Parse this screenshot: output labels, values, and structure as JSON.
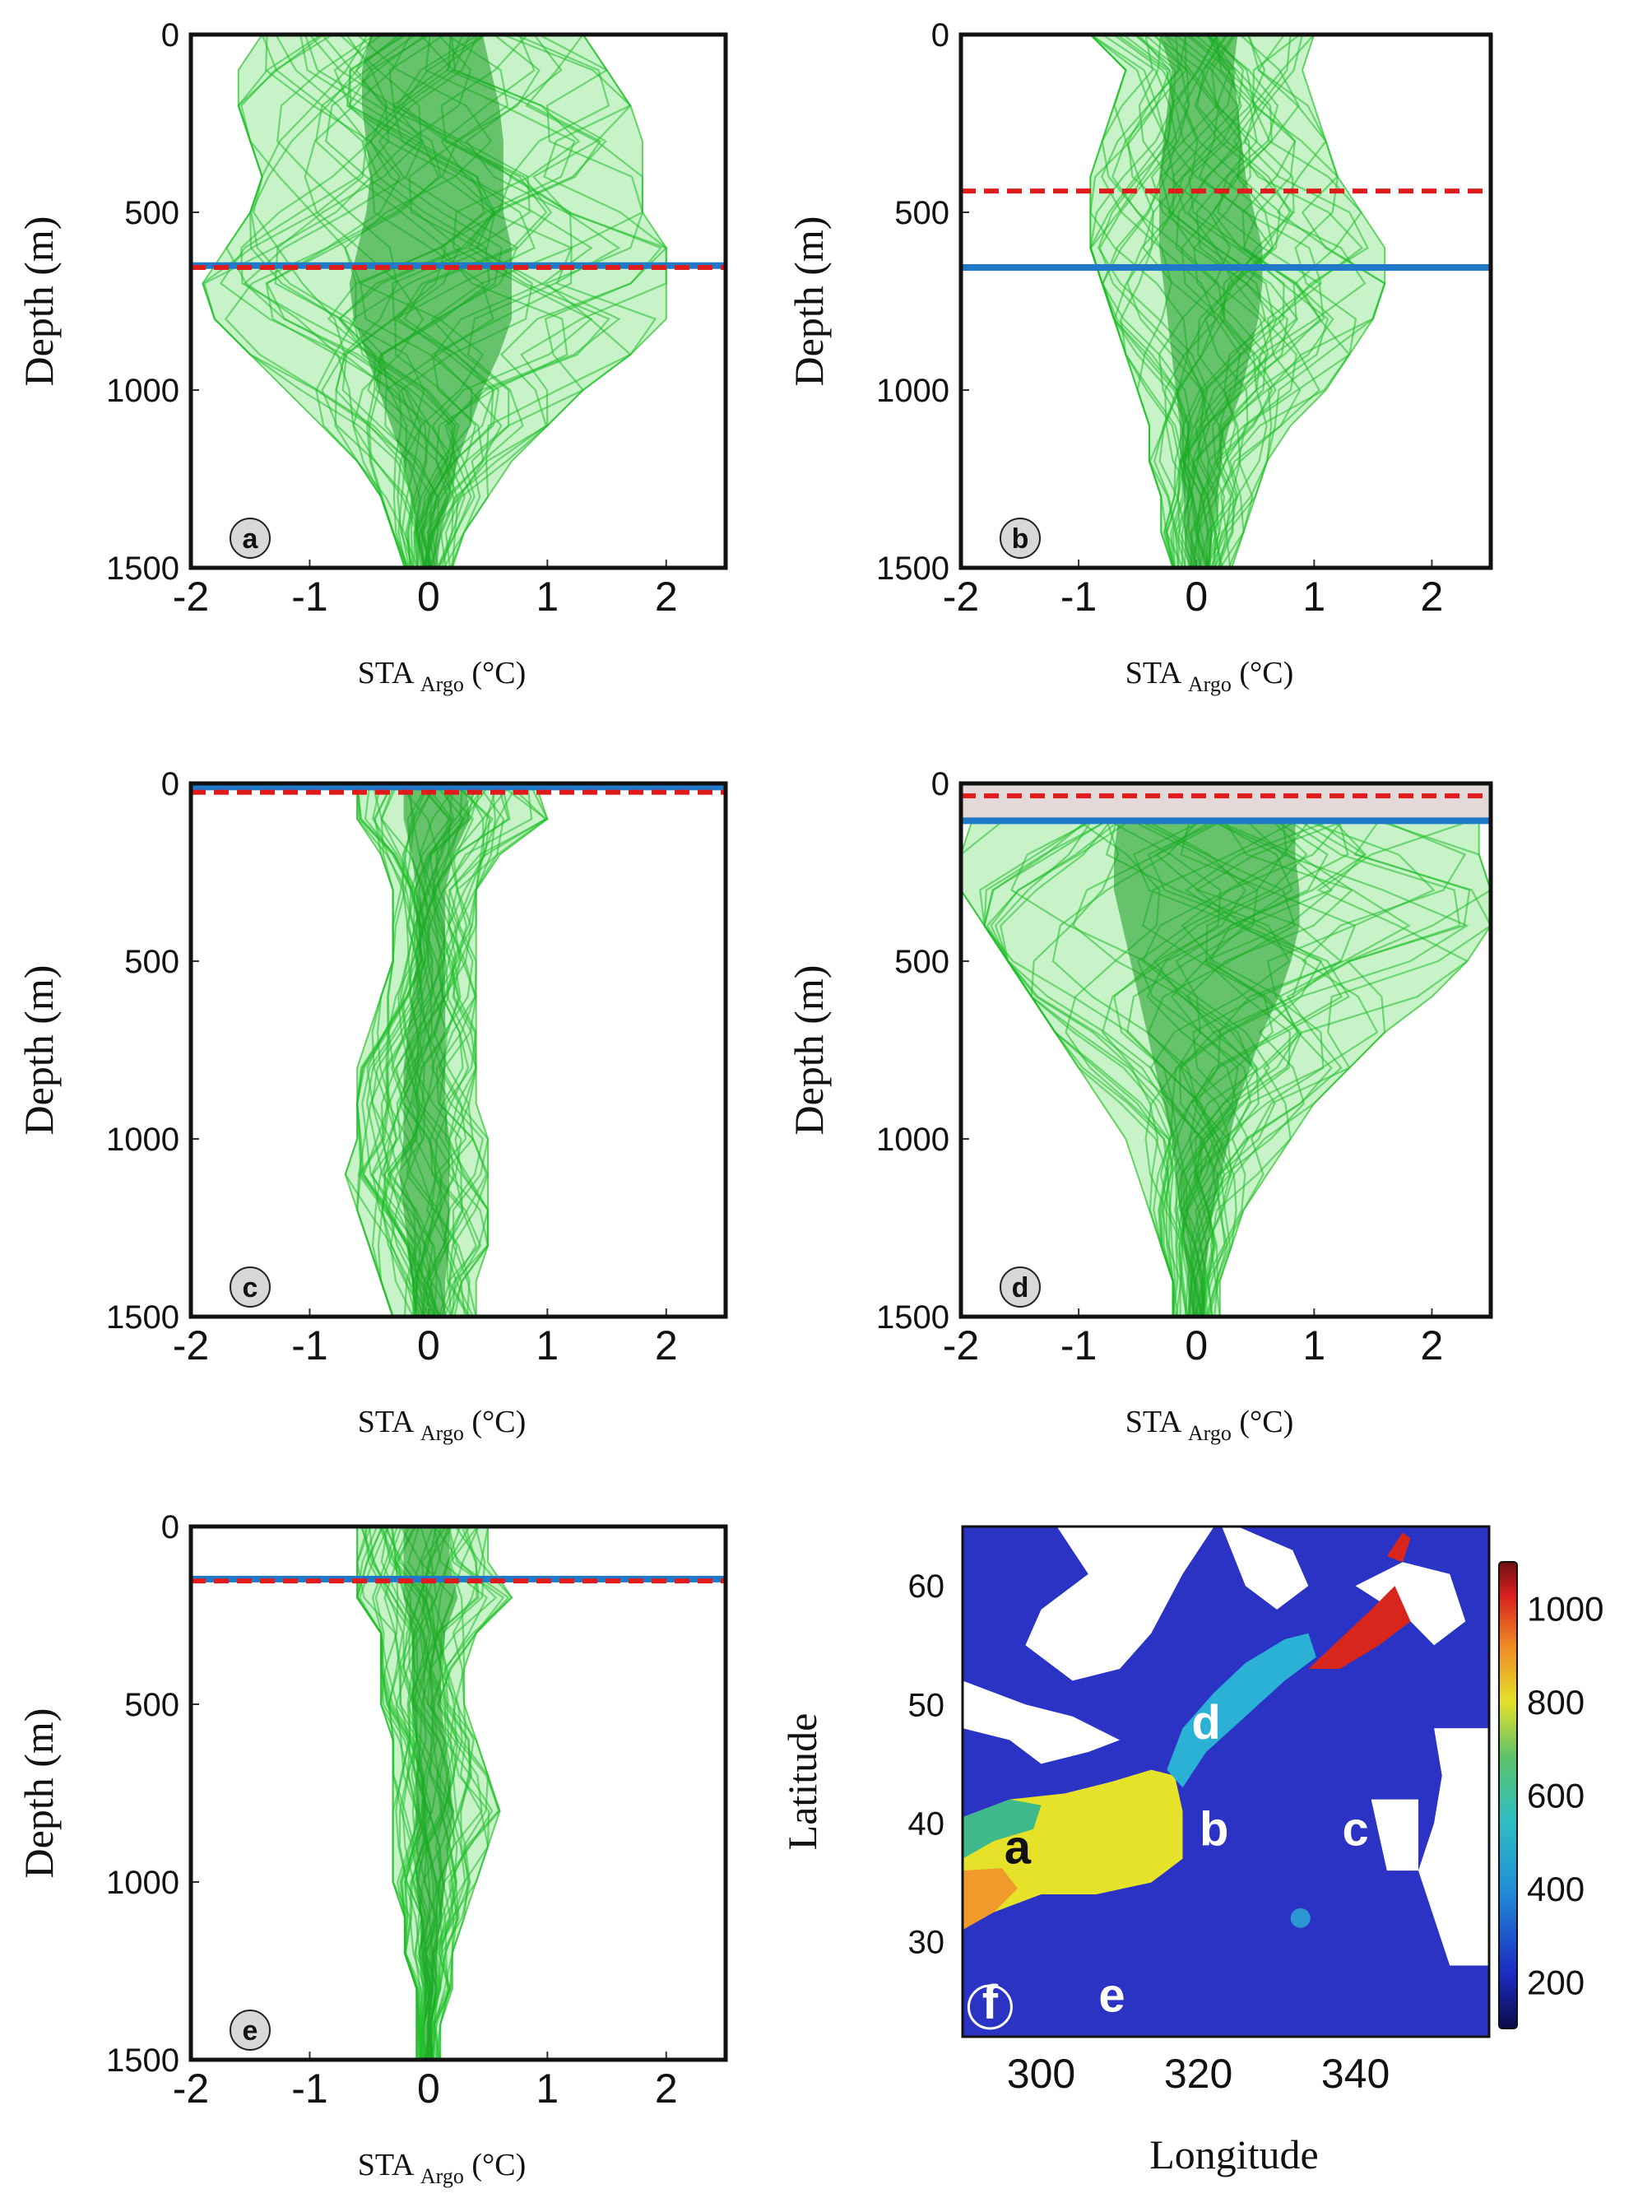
{
  "chart_data": [
    {
      "type": "line",
      "panel": "a",
      "ylabel": "Depth (m)",
      "xlabel_main": "STA",
      "xlabel_sub": "Argo",
      "xlabel_unit": "(°C)",
      "xlim": [
        -2,
        2.5
      ],
      "ylim": [
        1500,
        0
      ],
      "xticks": [
        "-2",
        "-1",
        "0",
        "1",
        "2"
      ],
      "xtick_values": [
        -2,
        -1,
        0,
        1,
        2
      ],
      "yticks": [
        "0",
        "500",
        "1000",
        "1500"
      ],
      "ytick_values": [
        0,
        500,
        1000,
        1500
      ],
      "profile_envelope": {
        "depth": [
          0,
          100,
          200,
          300,
          400,
          500,
          600,
          700,
          800,
          900,
          1000,
          1100,
          1200,
          1300,
          1400,
          1500
        ],
        "min": [
          -1.4,
          -1.6,
          -1.6,
          -1.5,
          -1.4,
          -1.5,
          -1.7,
          -1.9,
          -1.8,
          -1.5,
          -1.2,
          -0.9,
          -0.6,
          -0.4,
          -0.3,
          -0.2
        ],
        "max": [
          1.3,
          1.5,
          1.7,
          1.8,
          1.8,
          1.8,
          2.0,
          2.0,
          2.0,
          1.7,
          1.3,
          1.0,
          0.7,
          0.5,
          0.3,
          0.2
        ]
      },
      "blue_line_depth": 650,
      "red_dashed_depth": 655
    },
    {
      "type": "line",
      "panel": "b",
      "ylabel": "Depth (m)",
      "xlabel_main": "STA",
      "xlabel_sub": "Argo",
      "xlabel_unit": "(°C)",
      "xlim": [
        -2,
        2.5
      ],
      "ylim": [
        1500,
        0
      ],
      "xticks": [
        "-2",
        "-1",
        "0",
        "1",
        "2"
      ],
      "xtick_values": [
        -2,
        -1,
        0,
        1,
        2
      ],
      "yticks": [
        "0",
        "500",
        "1000",
        "1500"
      ],
      "ytick_values": [
        0,
        500,
        1000,
        1500
      ],
      "profile_envelope": {
        "depth": [
          0,
          100,
          200,
          300,
          400,
          500,
          600,
          700,
          800,
          900,
          1000,
          1100,
          1200,
          1300,
          1400,
          1500
        ],
        "min": [
          -0.9,
          -0.6,
          -0.7,
          -0.8,
          -0.9,
          -0.9,
          -0.9,
          -0.8,
          -0.7,
          -0.6,
          -0.5,
          -0.4,
          -0.4,
          -0.3,
          -0.3,
          -0.2
        ],
        "max": [
          1.0,
          0.9,
          1.0,
          1.1,
          1.2,
          1.4,
          1.6,
          1.6,
          1.5,
          1.3,
          1.1,
          0.8,
          0.6,
          0.5,
          0.4,
          0.3
        ]
      },
      "blue_line_depth": 655,
      "red_dashed_depth": 440
    },
    {
      "type": "line",
      "panel": "c",
      "ylabel": "Depth (m)",
      "xlabel_main": "STA",
      "xlabel_sub": "Argo",
      "xlabel_unit": "(°C)",
      "xlim": [
        -2,
        2.5
      ],
      "ylim": [
        1500,
        0
      ],
      "xticks": [
        "-2",
        "-1",
        "0",
        "1",
        "2"
      ],
      "xtick_values": [
        -2,
        -1,
        0,
        1,
        2
      ],
      "yticks": [
        "0",
        "500",
        "1000",
        "1500"
      ],
      "ytick_values": [
        0,
        500,
        1000,
        1500
      ],
      "profile_envelope": {
        "depth": [
          0,
          100,
          200,
          300,
          400,
          500,
          600,
          700,
          800,
          900,
          1000,
          1100,
          1200,
          1300,
          1400,
          1500
        ],
        "min": [
          -0.6,
          -0.6,
          -0.4,
          -0.3,
          -0.3,
          -0.3,
          -0.4,
          -0.5,
          -0.6,
          -0.6,
          -0.6,
          -0.7,
          -0.6,
          -0.5,
          -0.4,
          -0.3
        ],
        "max": [
          0.9,
          1.0,
          0.6,
          0.4,
          0.4,
          0.4,
          0.4,
          0.4,
          0.4,
          0.4,
          0.5,
          0.5,
          0.5,
          0.5,
          0.4,
          0.4
        ]
      },
      "blue_line_depth": 10,
      "red_dashed_depth": 25
    },
    {
      "type": "line",
      "panel": "d",
      "ylabel": "Depth (m)",
      "xlabel_main": "STA",
      "xlabel_sub": "Argo",
      "xlabel_unit": "(°C)",
      "xlim": [
        -2,
        2.5
      ],
      "ylim": [
        1500,
        0
      ],
      "xticks": [
        "-2",
        "-1",
        "0",
        "1",
        "2"
      ],
      "xtick_values": [
        -2,
        -1,
        0,
        1,
        2
      ],
      "yticks": [
        "0",
        "500",
        "1000",
        "1500"
      ],
      "ytick_values": [
        0,
        500,
        1000,
        1500
      ],
      "profile_envelope": {
        "depth": [
          100,
          200,
          300,
          400,
          500,
          600,
          700,
          800,
          900,
          1000,
          1100,
          1200,
          1300,
          1400,
          1500
        ],
        "min": [
          -1.9,
          -2.0,
          -2.0,
          -1.8,
          -1.6,
          -1.4,
          -1.2,
          -1.0,
          -0.8,
          -0.6,
          -0.5,
          -0.4,
          -0.3,
          -0.2,
          -0.2
        ],
        "max": [
          2.4,
          2.4,
          2.5,
          2.5,
          2.3,
          2.0,
          1.6,
          1.3,
          1.0,
          0.8,
          0.6,
          0.4,
          0.3,
          0.2,
          0.2
        ]
      },
      "blue_line_depth": 105,
      "red_dashed_depth": 35
    },
    {
      "type": "line",
      "panel": "e",
      "ylabel": "Depth (m)",
      "xlabel_main": "STA",
      "xlabel_sub": "Argo",
      "xlabel_unit": "(°C)",
      "xlim": [
        -2,
        2.5
      ],
      "ylim": [
        1500,
        0
      ],
      "xticks": [
        "-2",
        "-1",
        "0",
        "1",
        "2"
      ],
      "xtick_values": [
        -2,
        -1,
        0,
        1,
        2
      ],
      "yticks": [
        "0",
        "500",
        "1000",
        "1500"
      ],
      "ytick_values": [
        0,
        500,
        1000,
        1500
      ],
      "profile_envelope": {
        "depth": [
          0,
          100,
          200,
          300,
          400,
          500,
          600,
          700,
          800,
          900,
          1000,
          1100,
          1200,
          1300,
          1400,
          1500
        ],
        "min": [
          -0.6,
          -0.6,
          -0.6,
          -0.4,
          -0.4,
          -0.4,
          -0.3,
          -0.3,
          -0.3,
          -0.3,
          -0.3,
          -0.2,
          -0.2,
          -0.1,
          -0.1,
          -0.1
        ],
        "max": [
          0.5,
          0.5,
          0.7,
          0.4,
          0.3,
          0.3,
          0.4,
          0.5,
          0.6,
          0.5,
          0.4,
          0.3,
          0.2,
          0.2,
          0.1,
          0.1
        ]
      },
      "blue_line_depth": 148,
      "red_dashed_depth": 153
    },
    {
      "type": "heatmap",
      "panel": "f",
      "xlabel": "Longitude",
      "ylabel": "Latitude",
      "xlim": [
        290,
        357
      ],
      "ylim": [
        22,
        65
      ],
      "xticks": [
        "300",
        "320",
        "340"
      ],
      "xtick_values": [
        300,
        320,
        340
      ],
      "yticks": [
        "30",
        "40",
        "50",
        "60"
      ],
      "ytick_values": [
        30,
        40,
        50,
        60
      ],
      "colorbar": {
        "range": [
          100,
          1100
        ],
        "ticks": [
          "200",
          "400",
          "600",
          "800",
          "1000"
        ],
        "tick_values": [
          200,
          400,
          600,
          800,
          1000
        ]
      },
      "region_labels": [
        {
          "text": "a",
          "lon": 297,
          "lat": 38,
          "color": "#111111"
        },
        {
          "text": "b",
          "lon": 322,
          "lat": 39.5,
          "color": "#ffffff"
        },
        {
          "text": "c",
          "lon": 340,
          "lat": 39.5,
          "color": "#ffffff"
        },
        {
          "text": "d",
          "lon": 321,
          "lat": 48.5,
          "color": "#ffffff"
        },
        {
          "text": "e",
          "lon": 309,
          "lat": 25.5,
          "color": "#ffffff"
        }
      ],
      "colors": {
        "ocean": "#2a33c4",
        "land": "#ffffff",
        "yellow": "#e6e22a",
        "red": "#d9261c",
        "cyan": "#2bb0d6",
        "green": "#3fb98b",
        "orange": "#ef9a2a"
      }
    }
  ],
  "panel_badges": [
    "a",
    "b",
    "c",
    "d",
    "e",
    "f"
  ]
}
